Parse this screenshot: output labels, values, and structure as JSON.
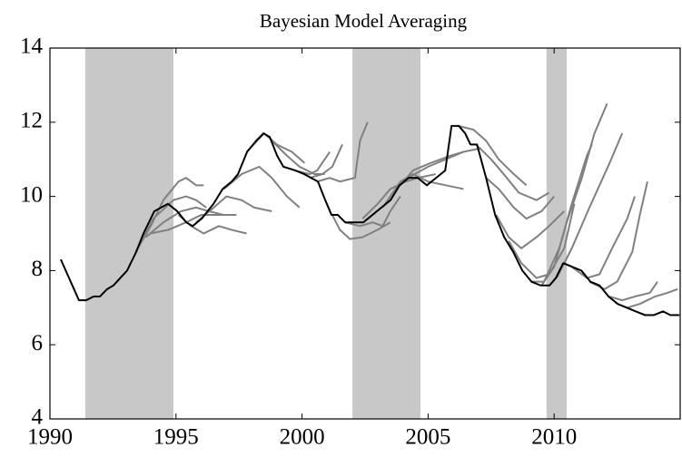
{
  "chart_data": {
    "type": "line",
    "title": "Bayesian Model Averaging",
    "xlim": [
      1990,
      2015
    ],
    "xticks": [
      1990,
      1995,
      2000,
      2005,
      2010
    ],
    "ylim": [
      4,
      14
    ],
    "yticks": [
      4,
      6,
      8,
      10,
      12,
      14
    ],
    "shading": [
      [
        1991.4,
        1994.9
      ],
      [
        2002.0,
        2004.7
      ],
      [
        2009.7,
        2010.5
      ]
    ],
    "shading_color": "#c8c8c8",
    "series": [
      {
        "color": "#808080",
        "x": [
          1993.4,
          1994.0,
          1994.5,
          1995.1,
          1995.4,
          1995.8,
          1996.1
        ],
        "values": [
          8.5,
          9.2,
          9.9,
          10.4,
          10.5,
          10.3,
          10.3
        ]
      },
      {
        "color": "#808080",
        "x": [
          1993.4,
          1994.1,
          1994.9,
          1995.4,
          1995.8,
          1996.2
        ],
        "values": [
          8.5,
          9.4,
          9.9,
          10.0,
          9.9,
          9.7
        ]
      },
      {
        "color": "#808080",
        "x": [
          1993.8,
          1994.5,
          1995.2,
          1995.8,
          1996.3,
          1996.9
        ],
        "values": [
          8.9,
          9.3,
          9.6,
          9.7,
          9.6,
          9.5
        ]
      },
      {
        "color": "#808080",
        "x": [
          1994.0,
          1994.7,
          1995.4,
          1996.0,
          1996.7,
          1997.4
        ],
        "values": [
          9.0,
          9.1,
          9.3,
          9.5,
          9.5,
          9.5
        ]
      },
      {
        "color": "#808080",
        "x": [
          1995.1,
          1995.6,
          1996.1,
          1996.7,
          1997.2,
          1997.8
        ],
        "values": [
          9.5,
          9.2,
          9.0,
          9.2,
          9.1,
          9.0
        ]
      },
      {
        "color": "#808080",
        "x": [
          1995.8,
          1996.5,
          1997.0,
          1997.6,
          1998.1,
          1998.8
        ],
        "values": [
          9.3,
          9.7,
          10.0,
          9.9,
          9.7,
          9.6
        ]
      },
      {
        "color": "#808080",
        "x": [
          1996.9,
          1997.6,
          1998.3,
          1998.8,
          1999.4,
          1999.9
        ],
        "values": [
          10.2,
          10.6,
          10.8,
          10.5,
          10.0,
          9.7
        ]
      },
      {
        "color": "#808080",
        "x": [
          1997.8,
          1998.5,
          1999.0,
          1999.6,
          2000.1
        ],
        "values": [
          11.2,
          11.7,
          11.4,
          11.2,
          10.9
        ]
      },
      {
        "color": "#808080",
        "x": [
          1998.8,
          1999.4,
          1999.9,
          2000.5,
          2000.9
        ],
        "values": [
          11.5,
          11.1,
          10.8,
          10.6,
          10.6
        ]
      },
      {
        "color": "#808080",
        "x": [
          1999.7,
          2000.3,
          2000.6,
          2000.9,
          2001.1
        ],
        "values": [
          10.7,
          10.6,
          10.7,
          11.0,
          11.2
        ]
      },
      {
        "color": "#808080",
        "x": [
          2000.3,
          2000.8,
          2001.2,
          2001.4,
          2001.6
        ],
        "values": [
          10.5,
          10.6,
          10.8,
          11.1,
          11.4
        ]
      },
      {
        "color": "#808080",
        "x": [
          2000.6,
          2001.1,
          2001.5,
          2002.1,
          2002.3,
          2002.6
        ],
        "values": [
          10.4,
          10.5,
          10.4,
          10.5,
          11.5,
          12.0
        ]
      },
      {
        "color": "#808080",
        "x": [
          2001.2,
          2001.5,
          2001.9,
          2002.4,
          2003.0,
          2003.5
        ],
        "values": [
          9.5,
          9.1,
          8.85,
          8.9,
          9.1,
          9.3
        ]
      },
      {
        "color": "#808080",
        "x": [
          2001.7,
          2002.3,
          2002.8,
          2003.2,
          2003.5,
          2003.9
        ],
        "values": [
          9.3,
          9.2,
          9.3,
          9.2,
          9.6,
          10.0
        ]
      },
      {
        "color": "#808080",
        "x": [
          2002.4,
          2003.0,
          2003.5,
          2004.1,
          2004.6,
          2005.3
        ],
        "values": [
          9.4,
          9.8,
          10.2,
          10.4,
          10.5,
          10.6
        ]
      },
      {
        "color": "#808080",
        "x": [
          2003.2,
          2003.9,
          2004.4,
          2005.0,
          2005.7,
          2006.4
        ],
        "values": [
          9.7,
          10.4,
          10.6,
          10.4,
          10.3,
          10.2
        ]
      },
      {
        "color": "#808080",
        "x": [
          2003.9,
          2004.4,
          2005.1,
          2005.9,
          2006.4
        ],
        "values": [
          10.3,
          10.7,
          10.9,
          11.1,
          11.2
        ]
      },
      {
        "color": "#808080",
        "x": [
          2004.2,
          2005.0,
          2005.7,
          2006.4,
          2007.1
        ],
        "values": [
          10.5,
          10.8,
          11.0,
          11.2,
          11.3
        ]
      },
      {
        "color": "#808080",
        "x": [
          2006.2,
          2006.8,
          2007.3,
          2007.8,
          2008.4,
          2008.9
        ],
        "values": [
          11.9,
          11.8,
          11.5,
          11.0,
          10.6,
          10.3
        ]
      },
      {
        "color": "#808080",
        "x": [
          2006.9,
          2007.5,
          2008.0,
          2008.6,
          2009.3,
          2009.8
        ],
        "values": [
          11.4,
          11.0,
          10.6,
          10.1,
          9.9,
          10.1
        ]
      },
      {
        "color": "#808080",
        "x": [
          2007.3,
          2007.8,
          2008.4,
          2008.9,
          2009.5,
          2010.0
        ],
        "values": [
          10.5,
          10.2,
          9.7,
          9.4,
          9.6,
          10.0
        ]
      },
      {
        "color": "#808080",
        "x": [
          2007.7,
          2008.2,
          2008.7,
          2009.3,
          2009.8,
          2010.4
        ],
        "values": [
          9.5,
          8.9,
          8.6,
          8.9,
          9.2,
          9.6
        ]
      },
      {
        "color": "#808080",
        "x": [
          2008.2,
          2008.7,
          2009.3,
          2009.8,
          2010.4,
          2010.8
        ],
        "values": [
          8.8,
          8.2,
          7.8,
          7.9,
          8.6,
          9.8
        ]
      },
      {
        "color": "#808080",
        "x": [
          2009.1,
          2009.6,
          2010.2,
          2010.7,
          2011.3,
          2011.5
        ],
        "values": [
          7.7,
          7.7,
          8.6,
          9.8,
          11.1,
          11.4
        ]
      },
      {
        "color": "#808080",
        "x": [
          2009.5,
          2010.0,
          2010.5,
          2011.1,
          2011.6,
          2012.1
        ],
        "values": [
          7.6,
          8.1,
          9.3,
          10.5,
          11.7,
          12.5
        ]
      },
      {
        "color": "#808080",
        "x": [
          2010.1,
          2010.7,
          2011.4,
          2012.2,
          2012.7
        ],
        "values": [
          7.8,
          8.6,
          9.7,
          10.9,
          11.7
        ]
      },
      {
        "color": "#808080",
        "x": [
          2010.7,
          2011.3,
          2011.8,
          2012.3,
          2012.9,
          2013.2
        ],
        "values": [
          8.1,
          7.8,
          7.9,
          8.6,
          9.4,
          10.0
        ]
      },
      {
        "color": "#808080",
        "x": [
          2011.4,
          2012.0,
          2012.5,
          2013.1,
          2013.4,
          2013.7
        ],
        "values": [
          7.7,
          7.5,
          7.7,
          8.5,
          9.5,
          10.4
        ]
      },
      {
        "color": "#808080",
        "x": [
          2012.2,
          2012.7,
          2013.2,
          2013.8,
          2014.1
        ],
        "values": [
          7.3,
          7.2,
          7.3,
          7.4,
          7.7
        ]
      },
      {
        "color": "#808080",
        "x": [
          2012.9,
          2013.4,
          2014.0,
          2014.5,
          2014.9
        ],
        "values": [
          7.0,
          7.1,
          7.3,
          7.4,
          7.5
        ]
      },
      {
        "color": "#000000",
        "x": [
          1990.43,
          1991.15,
          1991.44,
          1991.73,
          1991.98,
          1992.27,
          1992.52,
          1993.06,
          1993.42,
          1993.71,
          1994.14,
          1994.68,
          1995.05,
          1995.41,
          1995.66,
          1996.02,
          1996.49,
          1996.85,
          1997.21,
          1997.46,
          1997.82,
          1998.18,
          1998.47,
          1998.72,
          1999.01,
          1999.26,
          1999.73,
          2000.09,
          2000.63,
          2000.92,
          2001.17,
          2001.42,
          2001.71,
          2002.43,
          2002.79,
          2003.15,
          2003.51,
          2003.87,
          2004.23,
          2004.59,
          2004.95,
          2005.32,
          2005.68,
          2005.93,
          2006.22,
          2006.47,
          2006.68,
          2006.94,
          2007.3,
          2007.66,
          2008.02,
          2008.38,
          2008.74,
          2009.1,
          2009.46,
          2009.82,
          2010.07,
          2010.36,
          2010.72,
          2011.08,
          2011.44,
          2011.8,
          2012.16,
          2012.52,
          2012.88,
          2013.24,
          2013.6,
          2013.96,
          2014.32,
          2014.61,
          2014.97
        ],
        "values": [
          8.3,
          7.2,
          7.2,
          7.3,
          7.3,
          7.5,
          7.6,
          8.0,
          8.5,
          9.0,
          9.6,
          9.8,
          9.6,
          9.3,
          9.2,
          9.4,
          9.8,
          10.2,
          10.4,
          10.6,
          11.2,
          11.5,
          11.7,
          11.6,
          11.1,
          10.8,
          10.7,
          10.6,
          10.4,
          9.9,
          9.5,
          9.5,
          9.3,
          9.3,
          9.5,
          9.7,
          9.9,
          10.3,
          10.5,
          10.5,
          10.3,
          10.5,
          10.7,
          11.9,
          11.9,
          11.7,
          11.4,
          11.4,
          10.5,
          9.5,
          8.9,
          8.5,
          8.0,
          7.7,
          7.6,
          7.6,
          7.8,
          8.2,
          8.1,
          8.0,
          7.7,
          7.6,
          7.3,
          7.1,
          7.0,
          6.9,
          6.8,
          6.8,
          6.9,
          6.8,
          6.8
        ]
      }
    ]
  }
}
